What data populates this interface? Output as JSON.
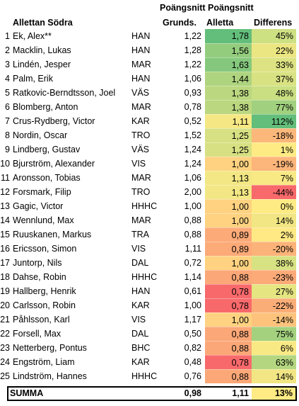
{
  "header": {
    "top_label": "Poängsnitt Poängsnitt",
    "title": "Allettan Södra",
    "col_grunds": "Grunds.",
    "col_alletta": "Alletta",
    "col_diff": "Differens"
  },
  "rows": [
    {
      "rank": "1",
      "name": "Ek, Alex**",
      "team": "HAN",
      "grunds": "1,22",
      "alletta": "1,78",
      "diff": "45%",
      "alletta_color": "#63be7b",
      "diff_color": "#cde082"
    },
    {
      "rank": "2",
      "name": "Macklin, Lukas",
      "team": "HAN",
      "grunds": "1,28",
      "alletta": "1,56",
      "diff": "22%",
      "alletta_color": "#94cc7e",
      "diff_color": "#ece682"
    },
    {
      "rank": "3",
      "name": "Lindén, Jesper",
      "team": "MAR",
      "grunds": "1,22",
      "alletta": "1,63",
      "diff": "33%",
      "alletta_color": "#85c87d",
      "diff_color": "#dde382"
    },
    {
      "rank": "4",
      "name": "Palm, Erik",
      "team": "HAN",
      "grunds": "1,06",
      "alletta": "1,44",
      "diff": "37%",
      "alletta_color": "#aed47f",
      "diff_color": "#d8e282"
    },
    {
      "rank": "5",
      "name": "Ratkovic-Berndtsson, Joel",
      "team": "VÄS",
      "grunds": "0,93",
      "alletta": "1,38",
      "diff": "48%",
      "alletta_color": "#bbd880",
      "diff_color": "#c9df81"
    },
    {
      "rank": "6",
      "name": "Blomberg, Anton",
      "team": "MAR",
      "grunds": "0,78",
      "alletta": "1,38",
      "diff": "77%",
      "alletta_color": "#bbd880",
      "diff_color": "#a1d07e"
    },
    {
      "rank": "7",
      "name": "Crus-Rydberg, Victor",
      "team": "KAR",
      "grunds": "0,52",
      "alletta": "1,11",
      "diff": "112%",
      "alletta_color": "#f5e884",
      "diff_color": "#63be7b"
    },
    {
      "rank": "8",
      "name": "Nordin, Oscar",
      "team": "TRO",
      "grunds": "1,52",
      "alletta": "1,25",
      "diff": "-18%",
      "alletta_color": "#d7e082",
      "diff_color": "#fcb77a"
    },
    {
      "rank": "9",
      "name": "Lindberg, Gustav",
      "team": "VÄS",
      "grunds": "1,24",
      "alletta": "1,25",
      "diff": "1%",
      "alletta_color": "#d7e082",
      "diff_color": "#ffeb84"
    },
    {
      "rank": "10",
      "name": "Bjurström, Alexander",
      "team": "VIS",
      "grunds": "1,24",
      "alletta": "1,00",
      "diff": "-19%",
      "alletta_color": "#fed280",
      "diff_color": "#fcb57a"
    },
    {
      "rank": "11",
      "name": "Aronsson, Tobias",
      "team": "MAR",
      "grunds": "1,06",
      "alletta": "1,13",
      "diff": "7%",
      "alletta_color": "#f2e784",
      "diff_color": "#f8e984"
    },
    {
      "rank": "12",
      "name": "Forsmark, Filip",
      "team": "TRO",
      "grunds": "2,00",
      "alletta": "1,13",
      "diff": "-44%",
      "alletta_color": "#f2e784",
      "diff_color": "#f8696b"
    },
    {
      "rank": "13",
      "name": "Gagic, Victor",
      "team": "HHHC",
      "grunds": "1,00",
      "alletta": "1,00",
      "diff": "0%",
      "alletta_color": "#fed280",
      "diff_color": "#ffeb84"
    },
    {
      "rank": "14",
      "name": "Wennlund, Max",
      "team": "MAR",
      "grunds": "0,88",
      "alletta": "1,00",
      "diff": "14%",
      "alletta_color": "#fed280",
      "diff_color": "#f1e683"
    },
    {
      "rank": "15",
      "name": "Ruuskanen, Markus",
      "team": "TRA",
      "grunds": "0,88",
      "alletta": "0,89",
      "diff": "2%",
      "alletta_color": "#fcaa78",
      "diff_color": "#fee984"
    },
    {
      "rank": "16",
      "name": "Ericsson, Simon",
      "team": "VIS",
      "grunds": "1,11",
      "alletta": "0,89",
      "diff": "-20%",
      "alletta_color": "#fcaa78",
      "diff_color": "#fcb379"
    },
    {
      "rank": "17",
      "name": "Juntorp, Nils",
      "team": "DAL",
      "grunds": "0,72",
      "alletta": "1,00",
      "diff": "38%",
      "alletta_color": "#fed280",
      "diff_color": "#d7e282"
    },
    {
      "rank": "18",
      "name": "Dahse, Robin",
      "team": "HHHC",
      "grunds": "1,14",
      "alletta": "0,88",
      "diff": "-23%",
      "alletta_color": "#fba777",
      "diff_color": "#fbaa78"
    },
    {
      "rank": "19",
      "name": "Hallberg, Henrik",
      "team": "HAN",
      "grunds": "0,61",
      "alletta": "0,78",
      "diff": "27%",
      "alletta_color": "#f8696b",
      "diff_color": "#e5e582"
    },
    {
      "rank": "20",
      "name": "Carlsson, Robin",
      "team": "KAR",
      "grunds": "1,00",
      "alletta": "0,78",
      "diff": "-22%",
      "alletta_color": "#f8696b",
      "diff_color": "#fbad78"
    },
    {
      "rank": "21",
      "name": "Påhlsson, Karl",
      "team": "VIS",
      "grunds": "1,17",
      "alletta": "1,00",
      "diff": "-14%",
      "alletta_color": "#fed280",
      "diff_color": "#fdc37c"
    },
    {
      "rank": "22",
      "name": "Forsell, Max",
      "team": "DAL",
      "grunds": "0,50",
      "alletta": "0,88",
      "diff": "75%",
      "alletta_color": "#fba777",
      "diff_color": "#a3d17e"
    },
    {
      "rank": "23",
      "name": "Netterberg, Pontus",
      "team": "BHC",
      "grunds": "0,82",
      "alletta": "0,88",
      "diff": "6%",
      "alletta_color": "#fba777",
      "diff_color": "#f9e984"
    },
    {
      "rank": "24",
      "name": "Engström, Liam",
      "team": "KAR",
      "grunds": "0,48",
      "alletta": "0,78",
      "diff": "63%",
      "alletta_color": "#f8696b",
      "diff_color": "#b4d680"
    },
    {
      "rank": "25",
      "name": "Lindström, Hannes",
      "team": "HHHC",
      "grunds": "0,76",
      "alletta": "0,88",
      "diff": "14%",
      "alletta_color": "#fba777",
      "diff_color": "#f1e683"
    }
  ],
  "summary": {
    "label": "SUMMA",
    "grunds": "0,98",
    "alletta": "1,11",
    "diff": "13%",
    "alletta_color": "#ffffff",
    "diff_color": "#ffeb84"
  }
}
